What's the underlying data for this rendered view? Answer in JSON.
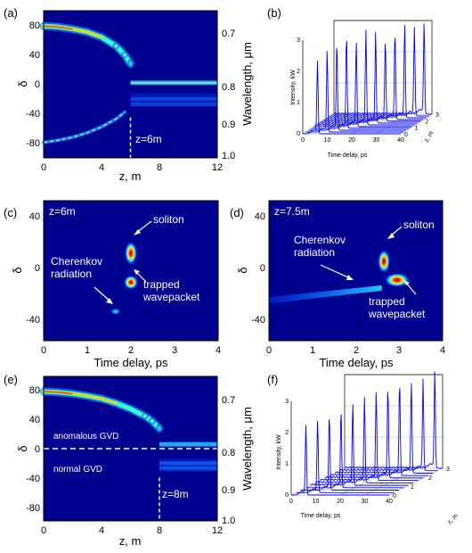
{
  "colors": {
    "background": "#00008f",
    "frame": "#000000",
    "annotation": "#ffffff",
    "trace": "#0000ff"
  },
  "chart_data": [
    {
      "panel": "(a)",
      "type": "heatmap",
      "xlabel": "z, m",
      "ylabel": "δ",
      "y2label": "Wavelength, μm",
      "xticks": [
        "0",
        "4",
        "8",
        "12"
      ],
      "yticks": [
        "80",
        "40",
        "0",
        "-40",
        "-80"
      ],
      "y2ticks": [
        "0.7",
        "0.8",
        "0.9",
        "1.0"
      ],
      "xlim": [
        0,
        12
      ],
      "ylim": [
        -100,
        100
      ],
      "annotations": [
        "z=6m"
      ],
      "features": {
        "upper_branch": {
          "z": [
            0,
            1,
            2,
            3,
            4,
            5,
            5.6,
            6
          ],
          "delta": [
            79,
            78,
            75,
            71,
            64,
            52,
            40,
            28
          ]
        },
        "lower_branch": {
          "z": [
            0,
            1,
            2,
            3,
            4,
            5,
            5.6
          ],
          "delta": [
            -79,
            -76,
            -72,
            -66,
            -58,
            -47,
            -38
          ]
        },
        "bands": [
          {
            "z_start": 6,
            "z_end": 12,
            "delta": 2
          },
          {
            "z_start": 6,
            "z_end": 12,
            "delta": -20
          },
          {
            "z_start": 6,
            "z_end": 12,
            "delta": -27
          }
        ],
        "marker_z": 6
      }
    },
    {
      "panel": "(b)",
      "type": "line",
      "xlabel": "Time delay, ps",
      "ylabel": "Intensity, kW",
      "zlabel": "z, m",
      "xticks": [
        "0",
        "10",
        "20",
        "30",
        "40"
      ],
      "yticks": [
        "0",
        "1",
        "2",
        "3"
      ],
      "zticks": [
        "0",
        "1",
        "2",
        "3"
      ],
      "series": [
        {
          "peaks_kw": [
            2.3,
            2.6,
            2.8,
            3.0,
            2.7,
            3.0,
            2.9,
            2.6,
            2.8,
            3.0,
            2.8,
            2.9
          ]
        }
      ]
    },
    {
      "panel": "(c)",
      "type": "heatmap",
      "xlabel": "Time delay, ps",
      "ylabel": "δ",
      "xticks": [
        "0",
        "1",
        "2",
        "3",
        "4"
      ],
      "yticks": [
        "40",
        "0",
        "-40"
      ],
      "xlim": [
        0,
        4
      ],
      "ylim": [
        -60,
        60
      ],
      "annotations": [
        "z=6m",
        "soliton",
        "Cherenkov radiation",
        "trapped wavepacket"
      ],
      "features": {
        "spots": [
          {
            "t": 2.0,
            "delta": 15,
            "label": "soliton"
          },
          {
            "t": 2.0,
            "delta": -10,
            "label": "trapped wavepacket"
          },
          {
            "t": 1.65,
            "delta": -35,
            "label": "Cherenkov radiation"
          }
        ]
      }
    },
    {
      "panel": "(d)",
      "type": "heatmap",
      "xlabel": "Time delay, ps",
      "ylabel": "δ",
      "xticks": [
        "0",
        "1",
        "2",
        "3",
        "4"
      ],
      "yticks": [
        "40",
        "0",
        "-40"
      ],
      "xlim": [
        0,
        4
      ],
      "ylim": [
        -60,
        60
      ],
      "annotations": [
        "z=7.5m",
        "soliton",
        "Cherenkov radiation",
        "trapped wavepacket"
      ],
      "features": {
        "spots": [
          {
            "t": 2.65,
            "delta": 8,
            "label": "soliton"
          },
          {
            "t": 2.95,
            "delta": -8,
            "label": "trapped wavepacket"
          }
        ],
        "streak": {
          "t_start": 0,
          "t_end": 2.6,
          "delta_start": -25,
          "delta_end": -14
        }
      }
    },
    {
      "panel": "(e)",
      "type": "heatmap",
      "xlabel": "z, m",
      "ylabel": "δ",
      "y2label": "Wavelength, μm",
      "xticks": [
        "0",
        "4",
        "8",
        "12"
      ],
      "yticks": [
        "80",
        "40",
        "0",
        "-40",
        "-80"
      ],
      "y2ticks": [
        "0.7",
        "0.8",
        "0.9",
        "1.0"
      ],
      "xlim": [
        0,
        12
      ],
      "ylim": [
        -100,
        100
      ],
      "annotations": [
        "anomalous GVD",
        "normal GVD",
        "z=8m"
      ],
      "features": {
        "upper_branch": {
          "z": [
            0,
            1,
            2,
            3,
            4,
            5,
            6,
            7,
            7.5,
            8
          ],
          "delta": [
            79,
            78,
            76,
            73,
            69,
            63,
            55,
            45,
            38,
            28
          ]
        },
        "bands": [
          {
            "z_start": 8,
            "z_end": 12,
            "delta": 6
          },
          {
            "z_start": 8,
            "z_end": 12,
            "delta": -20
          },
          {
            "z_start": 8,
            "z_end": 12,
            "delta": -27
          }
        ],
        "marker_z": 8,
        "gvd_boundary_delta": 0
      }
    },
    {
      "panel": "(f)",
      "type": "line",
      "xlabel": "Time delay, ps",
      "ylabel": "Intensity, kW",
      "zlabel": "z, m",
      "xticks": [
        "0",
        "10",
        "20",
        "30",
        "40"
      ],
      "yticks": [
        "0",
        "1",
        "2",
        "3"
      ],
      "zticks": [
        "0",
        "1",
        "2",
        "3"
      ],
      "series": [
        {
          "peaks_kw": [
            2.2,
            2.3,
            2.4,
            2.5,
            2.6,
            2.7,
            2.8,
            2.9,
            3.0,
            2.9,
            2.9,
            3.1
          ]
        }
      ]
    }
  ]
}
